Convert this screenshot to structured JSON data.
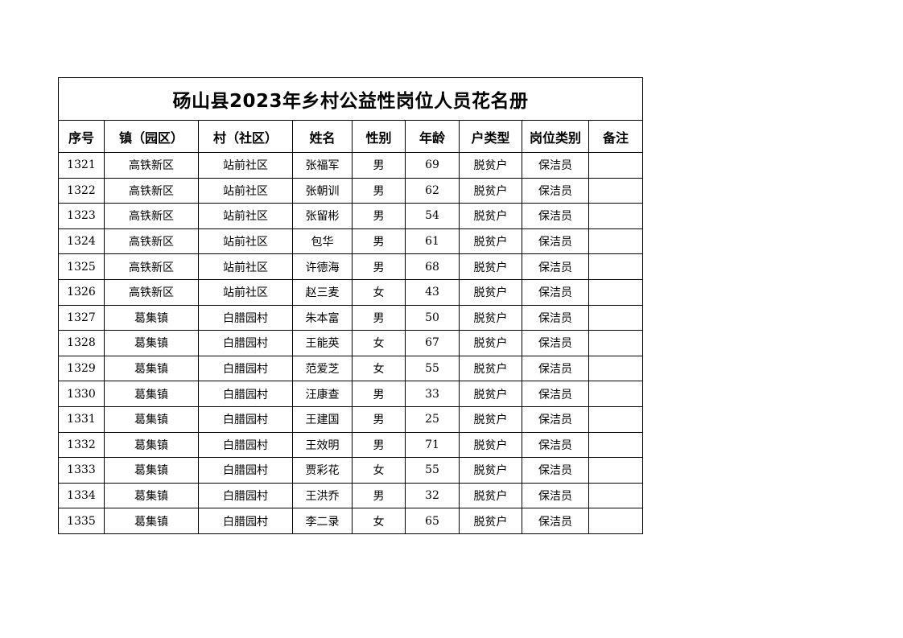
{
  "title": "砀山县2023年乡村公益性岗位人员花名册",
  "columns": [
    "序号",
    "镇（园区）",
    "村（社区）",
    "姓名",
    "性别",
    "年龄",
    "户类型",
    "岗位类别",
    "备注"
  ],
  "rows": [
    [
      "1321",
      "高铁新区",
      "站前社区",
      "张福军",
      "男",
      "69",
      "脱贫户",
      "保洁员",
      ""
    ],
    [
      "1322",
      "高铁新区",
      "站前社区",
      "张朝训",
      "男",
      "62",
      "脱贫户",
      "保洁员",
      ""
    ],
    [
      "1323",
      "高铁新区",
      "站前社区",
      "张留彬",
      "男",
      "54",
      "脱贫户",
      "保洁员",
      ""
    ],
    [
      "1324",
      "高铁新区",
      "站前社区",
      "包华",
      "男",
      "61",
      "脱贫户",
      "保洁员",
      ""
    ],
    [
      "1325",
      "高铁新区",
      "站前社区",
      "许德海",
      "男",
      "68",
      "脱贫户",
      "保洁员",
      ""
    ],
    [
      "1326",
      "高铁新区",
      "站前社区",
      "赵三麦",
      "女",
      "43",
      "脱贫户",
      "保洁员",
      ""
    ],
    [
      "1327",
      "葛集镇",
      "白腊园村",
      "朱本富",
      "男",
      "50",
      "脱贫户",
      "保洁员",
      ""
    ],
    [
      "1328",
      "葛集镇",
      "白腊园村",
      "王能英",
      "女",
      "67",
      "脱贫户",
      "保洁员",
      ""
    ],
    [
      "1329",
      "葛集镇",
      "白腊园村",
      "范爱芝",
      "女",
      "55",
      "脱贫户",
      "保洁员",
      ""
    ],
    [
      "1330",
      "葛集镇",
      "白腊园村",
      "汪康查",
      "男",
      "33",
      "脱贫户",
      "保洁员",
      ""
    ],
    [
      "1331",
      "葛集镇",
      "白腊园村",
      "王建国",
      "男",
      "25",
      "脱贫户",
      "保洁员",
      ""
    ],
    [
      "1332",
      "葛集镇",
      "白腊园村",
      "王效明",
      "男",
      "71",
      "脱贫户",
      "保洁员",
      ""
    ],
    [
      "1333",
      "葛集镇",
      "白腊园村",
      "贾彩花",
      "女",
      "55",
      "脱贫户",
      "保洁员",
      ""
    ],
    [
      "1334",
      "葛集镇",
      "白腊园村",
      "王洪乔",
      "男",
      "32",
      "脱贫户",
      "保洁员",
      ""
    ],
    [
      "1335",
      "葛集镇",
      "白腊园村",
      "李二录",
      "女",
      "65",
      "脱贫户",
      "保洁员",
      ""
    ]
  ]
}
